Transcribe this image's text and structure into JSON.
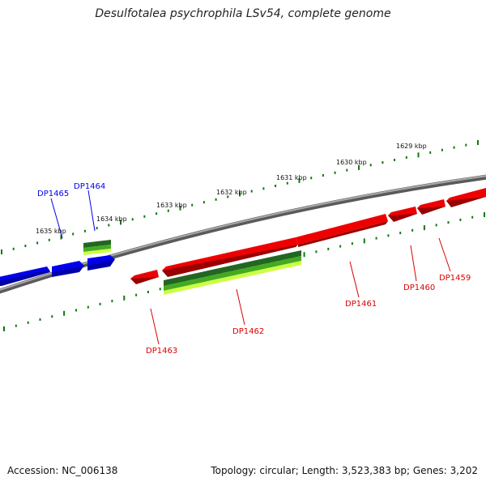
{
  "title": "Desulfotalea psychrophila LSv54, complete genome",
  "footer": {
    "accession": "Accession: NC_006138",
    "summary": "Topology: circular; Length: 3,523,383 bp; Genes: 3,202"
  },
  "scale_labels": [
    "1635 kbp",
    "1634 kbp",
    "1633 kbp",
    "1632 kbp",
    "1631 kbp",
    "1630 kbp",
    "1629 kbp"
  ],
  "genes": [
    {
      "name": "DP1465",
      "strand": "reverse",
      "color": "#0000ee"
    },
    {
      "name": "DP1464",
      "strand": "reverse",
      "color": "#0000ee"
    },
    {
      "name": "DP1463",
      "strand": "forward",
      "color": "#dd0000"
    },
    {
      "name": "DP1462",
      "strand": "forward",
      "color": "#dd0000"
    },
    {
      "name": "DP1461",
      "strand": "forward",
      "color": "#dd0000"
    },
    {
      "name": "DP1460",
      "strand": "forward",
      "color": "#dd0000"
    },
    {
      "name": "DP1459",
      "strand": "forward",
      "color": "#dd0000"
    }
  ],
  "colors": {
    "backbone": "#8a8a8a",
    "forward_gene": "#ee0000",
    "reverse_gene": "#0000ee",
    "rna_feature_dark": "#226622",
    "rna_feature_light": "#ccff44",
    "tick": "#117711"
  }
}
